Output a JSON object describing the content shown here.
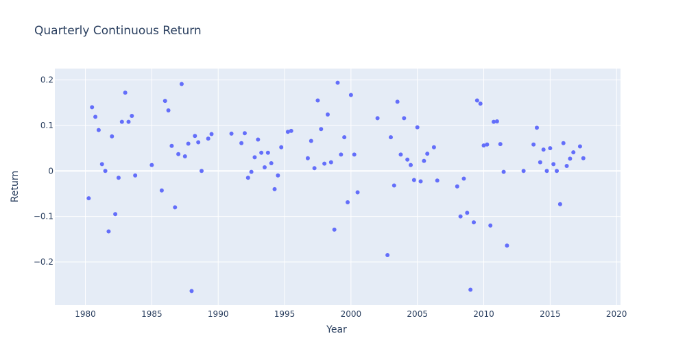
{
  "chart_data": {
    "type": "scatter",
    "title": "Quarterly Continuous Return",
    "xlabel": "Year",
    "ylabel": "Return",
    "xlim": [
      1977.7,
      2020.3
    ],
    "ylim": [
      -0.295,
      0.225
    ],
    "x_ticks": [
      1980,
      1985,
      1990,
      1995,
      2000,
      2005,
      2010,
      2015,
      2020
    ],
    "x_tick_labels": [
      "1980",
      "1985",
      "1990",
      "1995",
      "2000",
      "2005",
      "2010",
      "2015",
      "2020"
    ],
    "y_ticks": [
      -0.2,
      -0.1,
      0,
      0.1,
      0.2
    ],
    "y_tick_labels": [
      "−0.2",
      "−0.1",
      "0",
      "0.1",
      "0.2"
    ],
    "grid": true,
    "colors": {
      "marker": "#636efa",
      "plot_bg": "#e5ecf6",
      "grid": "#ffffff",
      "text": "#2a3f5f"
    },
    "series": [
      {
        "x": [
          1980.25,
          1980.5,
          1980.75,
          1981.0,
          1981.25,
          1981.5,
          1981.75,
          1982.0,
          1982.25,
          1982.5,
          1982.75,
          1983.0,
          1983.25,
          1983.5,
          1983.75,
          1985.0,
          1985.75,
          1986.0,
          1986.25,
          1986.5,
          1986.75,
          1987.0,
          1987.25,
          1987.5,
          1987.75,
          1988.0,
          1988.25,
          1988.5,
          1988.75,
          1989.25,
          1989.5,
          1991.0,
          1991.75,
          1992.0,
          1992.25,
          1992.5,
          1992.75,
          1993.0,
          1993.25,
          1993.5,
          1993.75,
          1994.0,
          1994.25,
          1994.5,
          1994.75,
          1995.25,
          1995.5,
          1996.75,
          1997.0,
          1997.25,
          1997.5,
          1997.75,
          1998.0,
          1998.25,
          1998.5,
          1998.75,
          1999.0,
          1999.25,
          1999.5,
          1999.75,
          2000.0,
          2000.25,
          2000.5,
          2002.0,
          2002.75,
          2003.0,
          2003.25,
          2003.5,
          2003.75,
          2004.0,
          2004.25,
          2004.5,
          2004.75,
          2005.0,
          2005.25,
          2005.5,
          2005.75,
          2006.25,
          2006.5,
          2008.0,
          2008.25,
          2008.5,
          2008.75,
          2009.0,
          2009.25,
          2009.5,
          2009.75,
          2010.0,
          2010.25,
          2010.5,
          2010.75,
          2011.0,
          2011.25,
          2011.5,
          2011.75,
          2013.0,
          2013.75,
          2014.0,
          2014.25,
          2014.5,
          2014.75,
          2015.0,
          2015.25,
          2015.5,
          2015.75,
          2016.0,
          2016.25,
          2016.5,
          2016.75,
          2017.25,
          2017.5
        ],
        "y": [
          -0.06,
          0.14,
          0.119,
          0.09,
          0.015,
          0.0,
          -0.133,
          0.076,
          -0.095,
          -0.015,
          0.108,
          0.172,
          0.108,
          0.121,
          -0.01,
          0.013,
          -0.043,
          0.154,
          0.133,
          0.055,
          -0.08,
          0.037,
          0.191,
          0.032,
          0.06,
          -0.264,
          0.077,
          0.063,
          0.0,
          0.071,
          0.081,
          0.082,
          0.061,
          0.083,
          -0.015,
          -0.002,
          0.03,
          0.069,
          0.04,
          0.008,
          0.04,
          0.017,
          -0.04,
          -0.01,
          0.052,
          0.086,
          0.088,
          0.028,
          0.066,
          0.006,
          0.155,
          0.092,
          0.016,
          0.124,
          0.019,
          -0.129,
          0.194,
          0.036,
          0.074,
          -0.069,
          0.167,
          0.036,
          -0.047,
          0.116,
          -0.185,
          0.074,
          -0.032,
          0.152,
          0.036,
          0.116,
          0.025,
          0.013,
          -0.02,
          0.096,
          -0.023,
          0.022,
          0.038,
          0.052,
          -0.021,
          -0.034,
          -0.1,
          -0.017,
          -0.092,
          -0.261,
          -0.113,
          0.155,
          0.148,
          0.056,
          0.058,
          -0.12,
          0.108,
          0.109,
          0.059,
          -0.002,
          -0.164,
          0.0,
          0.058,
          0.095,
          0.019,
          0.047,
          0.0,
          0.05,
          0.015,
          0.0,
          -0.073,
          0.061,
          0.011,
          0.027,
          0.041,
          0.054,
          0.028
        ]
      }
    ]
  }
}
